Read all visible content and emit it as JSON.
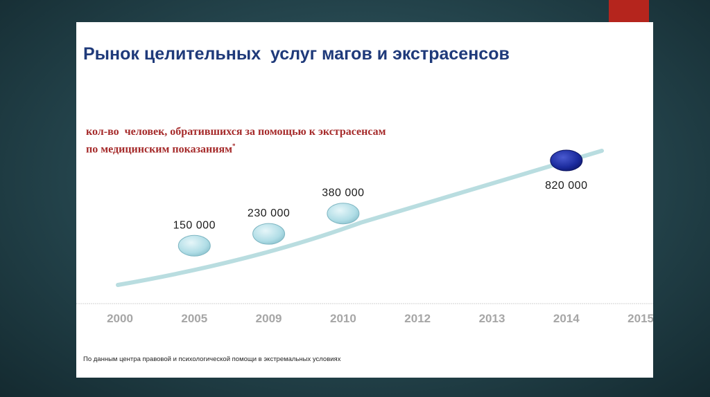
{
  "slide": {
    "title": "Рынок целительных  услуг магов и экстрасенсов",
    "subtitle_line1": "кол-во  человек, обратившихся за помощью к экстрасенсам",
    "subtitle_line2": "по медицинским показаниям",
    "subtitle_mark": "*",
    "source": "По данным центра правовой и психологической помощи в экстремальных условиях"
  },
  "chart_data": {
    "type": "line",
    "title": "Рынок целительных  услуг магов и экстрасенсов",
    "subtitle": "кол-во  человек, обратившихся за помощью к экстрасенсам по медицинским показаниям*",
    "categories": [
      "2000",
      "2005",
      "2009",
      "2010",
      "2012",
      "2013",
      "2014",
      "2015"
    ],
    "points": [
      {
        "x": "2005",
        "value": 150000,
        "label": "150 000"
      },
      {
        "x": "2009",
        "value": 230000,
        "label": "230 000"
      },
      {
        "x": "2010",
        "value": 380000,
        "label": "380 000"
      },
      {
        "x": "2014",
        "value": 820000,
        "label": "820 000",
        "highlight": true
      }
    ],
    "trend_line": true,
    "grid": false,
    "legend": "none",
    "colors": {
      "trend": "#b9dde0",
      "marker": "#b0dde6",
      "marker_highlight": "#1a2a9c",
      "tick": "#a6a6a6",
      "axis": "#d0d0d0"
    }
  }
}
